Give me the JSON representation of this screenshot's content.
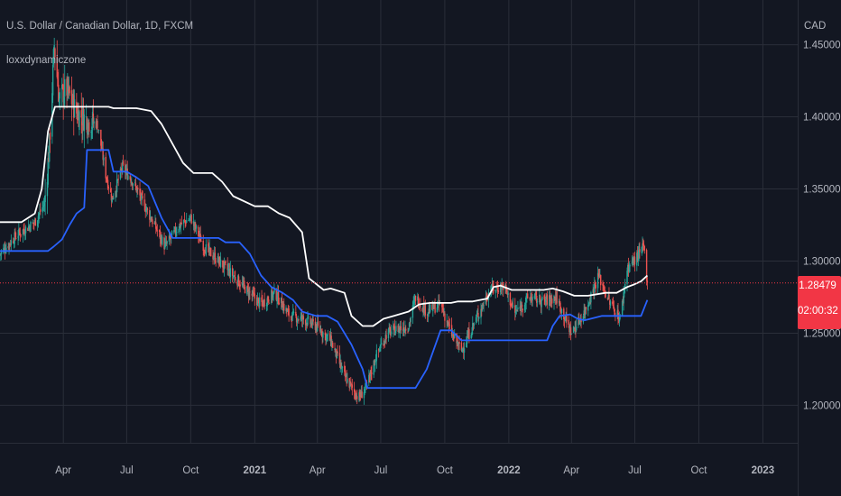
{
  "header": {
    "title": "U.S. Dollar / Canadian Dollar, 1D, FXCM",
    "indicator": "loxxdynamiczone",
    "currency": "CAD"
  },
  "price_tag": {
    "price": "1.28479",
    "countdown": "02:00:32"
  },
  "colors": {
    "background": "#131722",
    "grid": "#2a2e39",
    "up_candle": "#26a69a",
    "down_candle": "#ef5350",
    "upper_band": "#ffffff",
    "lower_band": "#2962ff",
    "current_price_line": "#f23645"
  },
  "chart_data": {
    "type": "candlestick",
    "title": "U.S. Dollar / Canadian Dollar, 1D, FXCM",
    "xlabel": "",
    "ylabel": "CAD",
    "y_range": [
      1.174,
      1.481
    ],
    "x_range": [
      "2020-01-01",
      "2023-02-20"
    ],
    "y_ticks": [
      "1.20000",
      "1.25000",
      "1.30000",
      "1.35000",
      "1.40000",
      "1.45000"
    ],
    "x_ticks": [
      {
        "label": "Apr",
        "date": "2020-04-01",
        "bold": false
      },
      {
        "label": "Jul",
        "date": "2020-07-01",
        "bold": false
      },
      {
        "label": "Oct",
        "date": "2020-10-01",
        "bold": false
      },
      {
        "label": "2021",
        "date": "2021-01-01",
        "bold": true
      },
      {
        "label": "Apr",
        "date": "2021-04-01",
        "bold": false
      },
      {
        "label": "Jul",
        "date": "2021-07-01",
        "bold": false
      },
      {
        "label": "Oct",
        "date": "2021-10-01",
        "bold": false
      },
      {
        "label": "2022",
        "date": "2022-01-01",
        "bold": true
      },
      {
        "label": "Apr",
        "date": "2022-04-01",
        "bold": false
      },
      {
        "label": "Jul",
        "date": "2022-07-01",
        "bold": false
      },
      {
        "label": "Oct",
        "date": "2022-10-01",
        "bold": false
      },
      {
        "label": "2023",
        "date": "2023-01-01",
        "bold": true
      }
    ],
    "grid": true,
    "current_price": 1.28479,
    "close_path": [
      [
        "2020-01-01",
        1.305
      ],
      [
        "2020-01-25",
        1.318
      ],
      [
        "2020-02-20",
        1.327
      ],
      [
        "2020-03-05",
        1.34
      ],
      [
        "2020-03-12",
        1.38
      ],
      [
        "2020-03-19",
        1.45
      ],
      [
        "2020-03-26",
        1.412
      ],
      [
        "2020-04-05",
        1.42
      ],
      [
        "2020-04-20",
        1.403
      ],
      [
        "2020-05-05",
        1.398
      ],
      [
        "2020-05-20",
        1.395
      ],
      [
        "2020-06-01",
        1.36
      ],
      [
        "2020-06-10",
        1.343
      ],
      [
        "2020-06-25",
        1.365
      ],
      [
        "2020-07-10",
        1.355
      ],
      [
        "2020-07-25",
        1.34
      ],
      [
        "2020-08-10",
        1.325
      ],
      [
        "2020-08-25",
        1.31
      ],
      [
        "2020-09-15",
        1.325
      ],
      [
        "2020-10-01",
        1.33
      ],
      [
        "2020-10-20",
        1.31
      ],
      [
        "2020-11-10",
        1.3
      ],
      [
        "2020-12-01",
        1.29
      ],
      [
        "2020-12-20",
        1.28
      ],
      [
        "2021-01-10",
        1.27
      ],
      [
        "2021-01-30",
        1.278
      ],
      [
        "2021-02-20",
        1.262
      ],
      [
        "2021-03-10",
        1.26
      ],
      [
        "2021-03-30",
        1.255
      ],
      [
        "2021-04-20",
        1.245
      ],
      [
        "2021-05-10",
        1.22
      ],
      [
        "2021-05-30",
        1.205
      ],
      [
        "2021-06-10",
        1.212
      ],
      [
        "2021-06-25",
        1.235
      ],
      [
        "2021-07-10",
        1.25
      ],
      [
        "2021-07-25",
        1.253
      ],
      [
        "2021-08-10",
        1.255
      ],
      [
        "2021-08-20",
        1.275
      ],
      [
        "2021-09-05",
        1.265
      ],
      [
        "2021-09-25",
        1.27
      ],
      [
        "2021-10-10",
        1.25
      ],
      [
        "2021-10-25",
        1.238
      ],
      [
        "2021-11-15",
        1.26
      ],
      [
        "2021-12-05",
        1.28
      ],
      [
        "2021-12-25",
        1.283
      ],
      [
        "2022-01-10",
        1.264
      ],
      [
        "2022-01-30",
        1.275
      ],
      [
        "2022-02-20",
        1.272
      ],
      [
        "2022-03-10",
        1.275
      ],
      [
        "2022-04-01",
        1.25
      ],
      [
        "2022-04-20",
        1.265
      ],
      [
        "2022-05-10",
        1.29
      ],
      [
        "2022-05-25",
        1.272
      ],
      [
        "2022-06-10",
        1.26
      ],
      [
        "2022-06-20",
        1.295
      ],
      [
        "2022-07-05",
        1.303
      ],
      [
        "2022-07-14",
        1.31
      ],
      [
        "2022-07-19",
        1.2848
      ]
    ],
    "series": [
      {
        "color": "#ffffff",
        "values": [
          [
            "2020-01-01",
            1.327
          ],
          [
            "2020-02-01",
            1.327
          ],
          [
            "2020-02-20",
            1.333
          ],
          [
            "2020-03-01",
            1.35
          ],
          [
            "2020-03-10",
            1.39
          ],
          [
            "2020-03-20",
            1.407
          ],
          [
            "2020-06-05",
            1.407
          ],
          [
            "2020-06-12",
            1.406
          ],
          [
            "2020-07-15",
            1.406
          ],
          [
            "2020-08-05",
            1.404
          ],
          [
            "2020-08-20",
            1.395
          ],
          [
            "2020-09-20",
            1.368
          ],
          [
            "2020-10-05",
            1.361
          ],
          [
            "2020-11-01",
            1.361
          ],
          [
            "2020-11-15",
            1.355
          ],
          [
            "2020-12-01",
            1.345
          ],
          [
            "2021-01-01",
            1.338
          ],
          [
            "2021-01-20",
            1.338
          ],
          [
            "2021-02-05",
            1.333
          ],
          [
            "2021-02-20",
            1.33
          ],
          [
            "2021-03-10",
            1.32
          ],
          [
            "2021-03-20",
            1.288
          ],
          [
            "2021-04-10",
            1.28
          ],
          [
            "2021-04-20",
            1.281
          ],
          [
            "2021-05-10",
            1.278
          ],
          [
            "2021-05-20",
            1.262
          ],
          [
            "2021-06-05",
            1.255
          ],
          [
            "2021-06-20",
            1.255
          ],
          [
            "2021-07-05",
            1.26
          ],
          [
            "2021-07-20",
            1.262
          ],
          [
            "2021-08-10",
            1.265
          ],
          [
            "2021-08-25",
            1.27
          ],
          [
            "2021-09-10",
            1.271
          ],
          [
            "2021-10-10",
            1.271
          ],
          [
            "2021-10-20",
            1.272
          ],
          [
            "2021-11-10",
            1.272
          ],
          [
            "2021-12-01",
            1.274
          ],
          [
            "2021-12-10",
            1.282
          ],
          [
            "2021-12-20",
            1.283
          ],
          [
            "2022-01-05",
            1.28
          ],
          [
            "2022-01-25",
            1.28
          ],
          [
            "2022-02-20",
            1.28
          ],
          [
            "2022-03-05",
            1.281
          ],
          [
            "2022-03-20",
            1.279
          ],
          [
            "2022-04-05",
            1.276
          ],
          [
            "2022-04-25",
            1.276
          ],
          [
            "2022-05-20",
            1.278
          ],
          [
            "2022-06-05",
            1.278
          ],
          [
            "2022-06-20",
            1.282
          ],
          [
            "2022-07-01",
            1.284
          ],
          [
            "2022-07-10",
            1.286
          ],
          [
            "2022-07-19",
            1.29
          ]
        ]
      },
      {
        "color": "#2962ff",
        "values": [
          [
            "2020-01-01",
            1.307
          ],
          [
            "2020-03-10",
            1.307
          ],
          [
            "2020-03-18",
            1.31
          ],
          [
            "2020-03-30",
            1.315
          ],
          [
            "2020-04-10",
            1.325
          ],
          [
            "2020-04-20",
            1.333
          ],
          [
            "2020-05-01",
            1.337
          ],
          [
            "2020-05-05",
            1.377
          ],
          [
            "2020-06-05",
            1.377
          ],
          [
            "2020-06-12",
            1.362
          ],
          [
            "2020-07-01",
            1.362
          ],
          [
            "2020-07-15",
            1.358
          ],
          [
            "2020-08-01",
            1.352
          ],
          [
            "2020-08-20",
            1.33
          ],
          [
            "2020-09-05",
            1.316
          ],
          [
            "2020-11-10",
            1.316
          ],
          [
            "2020-11-20",
            1.313
          ],
          [
            "2020-12-10",
            1.313
          ],
          [
            "2020-12-25",
            1.305
          ],
          [
            "2021-01-10",
            1.29
          ],
          [
            "2021-01-25",
            1.282
          ],
          [
            "2021-02-10",
            1.278
          ],
          [
            "2021-02-25",
            1.273
          ],
          [
            "2021-03-10",
            1.265
          ],
          [
            "2021-03-30",
            1.262
          ],
          [
            "2021-04-15",
            1.262
          ],
          [
            "2021-04-30",
            1.258
          ],
          [
            "2021-05-20",
            1.242
          ],
          [
            "2021-06-05",
            1.225
          ],
          [
            "2021-06-12",
            1.212
          ],
          [
            "2021-08-20",
            1.212
          ],
          [
            "2021-09-05",
            1.225
          ],
          [
            "2021-09-25",
            1.252
          ],
          [
            "2021-10-10",
            1.252
          ],
          [
            "2021-10-25",
            1.245
          ],
          [
            "2022-02-25",
            1.245
          ],
          [
            "2022-03-05",
            1.255
          ],
          [
            "2022-03-15",
            1.262
          ],
          [
            "2022-03-30",
            1.263
          ],
          [
            "2022-04-10",
            1.26
          ],
          [
            "2022-04-20",
            1.259
          ],
          [
            "2022-05-15",
            1.262
          ],
          [
            "2022-05-25",
            1.262
          ],
          [
            "2022-07-10",
            1.262
          ],
          [
            "2022-07-19",
            1.273
          ]
        ]
      }
    ]
  }
}
